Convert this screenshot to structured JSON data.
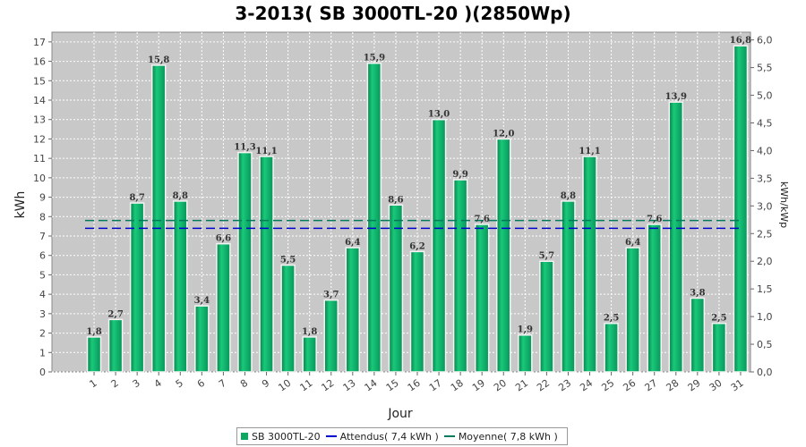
{
  "chart_data": {
    "type": "bar",
    "title": "3-2013( SB 3000TL-20 )(2850Wp)",
    "xlabel": "Jour",
    "ylabel": "kWh",
    "ylabel_right": "kWh/kWp",
    "ylim": [
      0,
      17.5
    ],
    "ylim_right": [
      0,
      6.14
    ],
    "yticks": [
      "0",
      "1",
      "2",
      "3",
      "4",
      "5",
      "6",
      "7",
      "8",
      "9",
      "10",
      "11",
      "12",
      "13",
      "14",
      "15",
      "16",
      "17"
    ],
    "yticks_right": [
      "0,0",
      "0,5",
      "1,0",
      "1,5",
      "2,0",
      "2,5",
      "3,0",
      "3,5",
      "4,0",
      "4,5",
      "5,0",
      "5,5",
      "6,0"
    ],
    "grid": true,
    "legend_position": "bottom",
    "categories": [
      "1",
      "2",
      "3",
      "4",
      "5",
      "6",
      "7",
      "8",
      "9",
      "10",
      "11",
      "12",
      "13",
      "14",
      "15",
      "16",
      "17",
      "18",
      "19",
      "20",
      "21",
      "22",
      "23",
      "24",
      "25",
      "26",
      "27",
      "28",
      "29",
      "30",
      "31"
    ],
    "series": [
      {
        "name": "SB 3000TL-20",
        "color": "#0aa85f",
        "values": [
          1.8,
          2.7,
          8.7,
          15.8,
          8.8,
          3.4,
          6.6,
          11.3,
          11.1,
          5.5,
          1.8,
          3.7,
          6.4,
          15.9,
          8.6,
          6.2,
          13.0,
          9.9,
          7.6,
          12.0,
          1.9,
          5.7,
          8.8,
          11.1,
          2.5,
          6.4,
          7.6,
          13.9,
          3.8,
          2.5,
          16.8
        ],
        "labels": [
          "1,8",
          "2,7",
          "8,7",
          "15,8",
          "8,8",
          "3,4",
          "6,6",
          "11,3",
          "11,1",
          "5,5",
          "1,8",
          "3,7",
          "6,4",
          "15,9",
          "8,6",
          "6,2",
          "13,0",
          "9,9",
          "7,6",
          "12,0",
          "1,9",
          "5,7",
          "8,8",
          "11,1",
          "2,5",
          "6,4",
          "7,6",
          "13,9",
          "3,8",
          "2,5",
          "16,8"
        ]
      }
    ],
    "reference_lines": [
      {
        "name": "Attendus( 7,4 kWh )",
        "value": 7.4,
        "color": "#0000cc"
      },
      {
        "name": "Moyenne( 7,8 kWh )",
        "value": 7.8,
        "color": "#007a5e"
      }
    ],
    "legend": [
      "SB 3000TL-20",
      "Attendus( 7,4 kWh )",
      "Moyenne( 7,8 kWh )"
    ]
  }
}
